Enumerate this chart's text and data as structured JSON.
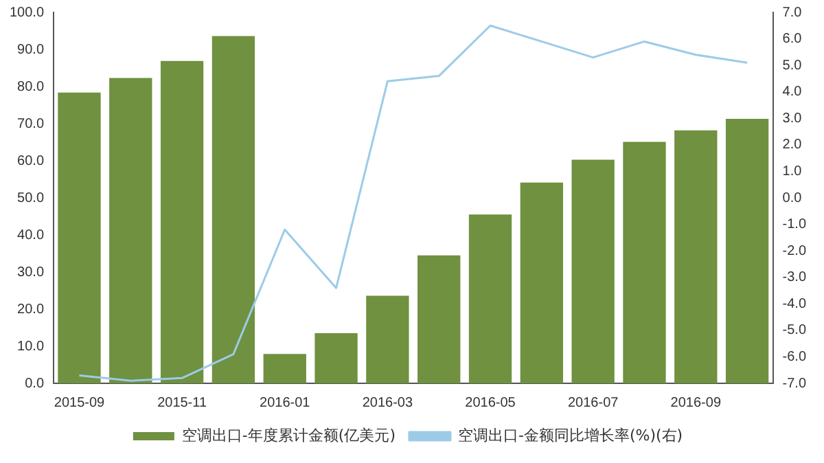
{
  "chart_data": {
    "type": "bar",
    "categories": [
      "2015-09",
      null,
      "2015-11",
      null,
      "2016-01",
      null,
      "2016-03",
      null,
      "2016-05",
      null,
      "2016-07",
      null,
      "2016-09",
      null
    ],
    "series": [
      {
        "name": "空调出口-年度累计金额(亿美元)",
        "color": "#6f9140",
        "values": [
          78.4,
          82.3,
          86.9,
          93.6,
          7.9,
          13.5,
          23.6,
          34.5,
          45.5,
          54.1,
          60.3,
          65.1,
          68.2,
          71.3
        ]
      },
      {
        "name": "空调出口-金额同比增长率(%)(右)",
        "type": "line",
        "axis": "y2",
        "color": "#9ccbe8",
        "values": [
          -6.7,
          -6.9,
          -6.8,
          -5.9,
          -1.2,
          -3.4,
          4.4,
          4.6,
          6.5,
          5.9,
          5.3,
          5.9,
          5.4,
          5.1
        ]
      }
    ],
    "ylim": [
      0,
      100
    ],
    "yticks": [
      {
        "value": 0,
        "label": "0.0"
      },
      {
        "value": 10,
        "label": "10.0"
      },
      {
        "value": 20,
        "label": "20.0"
      },
      {
        "value": 30,
        "label": "30.0"
      },
      {
        "value": 40,
        "label": "40.0"
      },
      {
        "value": 50,
        "label": "50.0"
      },
      {
        "value": 60,
        "label": "60.0"
      },
      {
        "value": 70,
        "label": "70.0"
      },
      {
        "value": 80,
        "label": "80.0"
      },
      {
        "value": 90,
        "label": "90.0"
      },
      {
        "value": 100,
        "label": "100.0"
      }
    ],
    "y2lim": [
      -7,
      7
    ],
    "y2ticks": [
      {
        "value": -7,
        "label": "-7.0"
      },
      {
        "value": -6,
        "label": "-6.0"
      },
      {
        "value": -5,
        "label": "-5.0"
      },
      {
        "value": -4,
        "label": "-4.0"
      },
      {
        "value": -3,
        "label": "-3.0"
      },
      {
        "value": -2,
        "label": "-2.0"
      },
      {
        "value": -1,
        "label": "-1.0"
      },
      {
        "value": 0,
        "label": "0.0"
      },
      {
        "value": 1,
        "label": "1.0"
      },
      {
        "value": 2,
        "label": "2.0"
      },
      {
        "value": 3,
        "label": "3.0"
      },
      {
        "value": 4,
        "label": "4.0"
      },
      {
        "value": 5,
        "label": "5.0"
      },
      {
        "value": 6,
        "label": "6.0"
      },
      {
        "value": 7,
        "label": "7.0"
      }
    ],
    "grid": false,
    "legend": "bottom",
    "marker": "none"
  }
}
